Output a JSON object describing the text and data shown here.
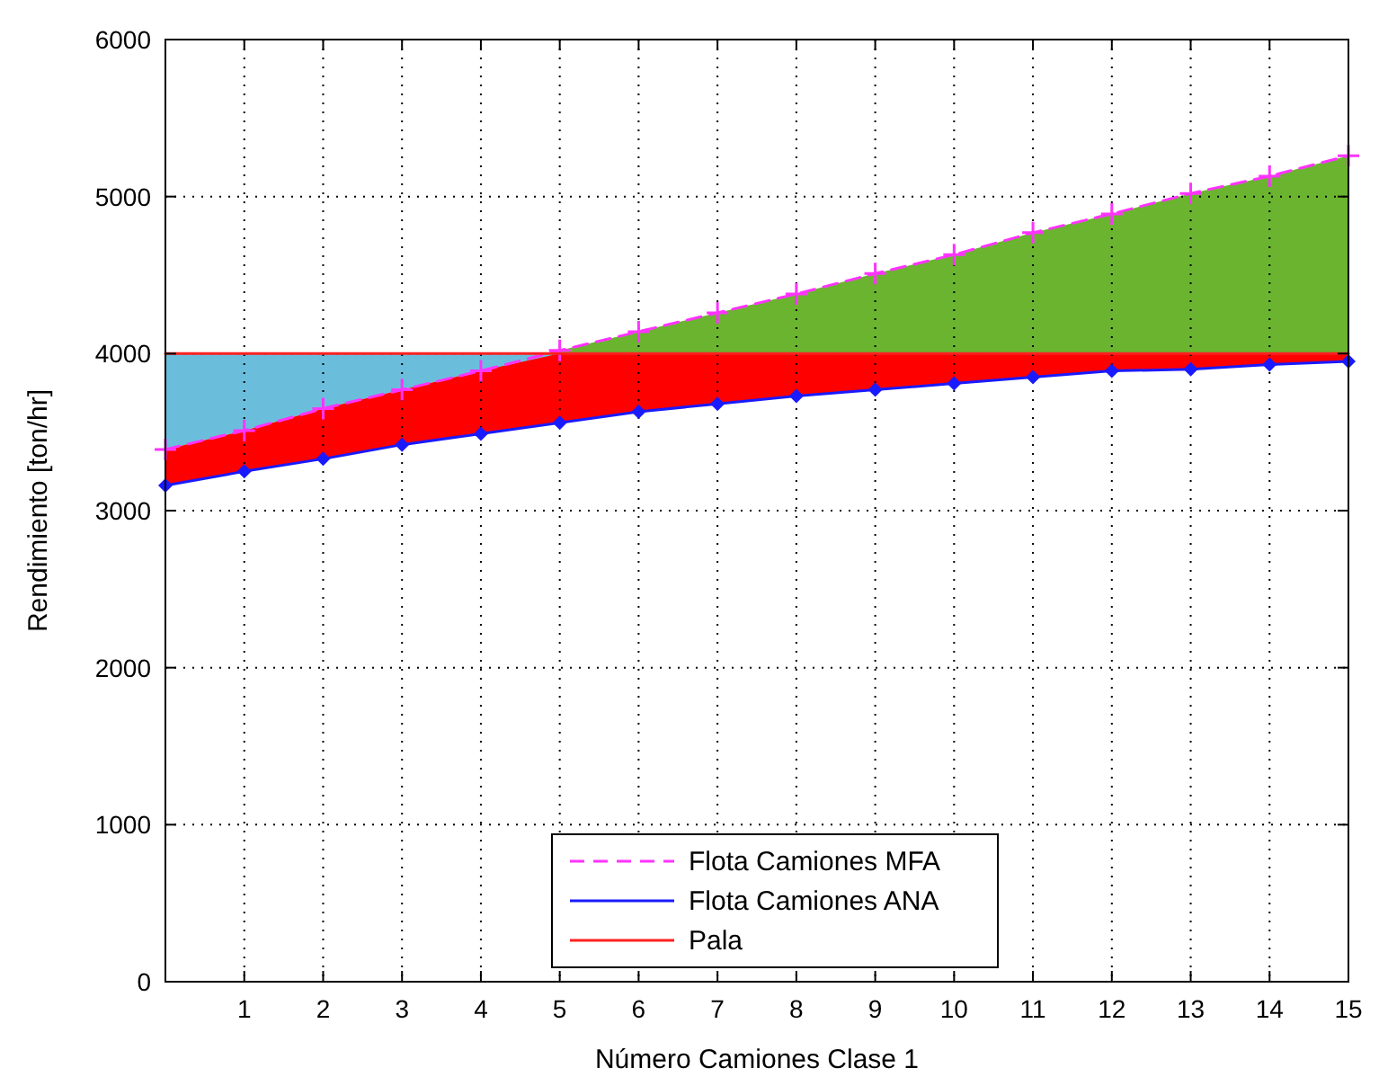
{
  "chart_data": {
    "type": "line",
    "xlabel": "Número Camiones Clase 1",
    "ylabel": "Rendimiento [ton/hr]",
    "x": [
      0,
      1,
      2,
      3,
      4,
      5,
      6,
      7,
      8,
      9,
      10,
      11,
      12,
      13,
      14,
      15
    ],
    "xlim": [
      0,
      15
    ],
    "xticks": [
      1,
      2,
      3,
      4,
      5,
      6,
      7,
      8,
      9,
      10,
      11,
      12,
      13,
      14,
      15
    ],
    "ylim": [
      0,
      6000
    ],
    "yticks": [
      0,
      1000,
      2000,
      3000,
      4000,
      5000,
      6000
    ],
    "grid": true,
    "legend": "bottom",
    "series": [
      {
        "type": "area",
        "color": "#6abedc",
        "x": [
          0,
          1,
          2,
          3,
          4,
          5
        ],
        "values": [
          4000,
          4000,
          4000,
          4000,
          4000,
          4000
        ]
      },
      {
        "type": "area",
        "color": "#6ab42f",
        "x": [
          5,
          6,
          7,
          8,
          9,
          10,
          11,
          12,
          13,
          14,
          15
        ],
        "values": [
          4020,
          4140,
          4260,
          4380,
          4510,
          4630,
          4770,
          4890,
          5020,
          5130,
          5260
        ]
      },
      {
        "type": "area",
        "color": "#ff0000",
        "values": [
          3390,
          3510,
          3650,
          3770,
          3890,
          4000,
          4000,
          4000,
          4000,
          4000,
          4000,
          4000,
          4000,
          4000,
          4000,
          4000
        ]
      },
      {
        "name": "Flota Camiones MFA",
        "color": "#ff33ff",
        "line_style": "dashed",
        "marker": "cross",
        "values": [
          3390,
          3510,
          3650,
          3770,
          3890,
          4020,
          4140,
          4260,
          4380,
          4510,
          4630,
          4770,
          4890,
          5020,
          5130,
          5260
        ]
      },
      {
        "name": "Flota Camiones ANA",
        "color": "#1a1aff",
        "line_style": "solid",
        "marker": "diamond",
        "values": [
          3160,
          3250,
          3330,
          3420,
          3490,
          3560,
          3630,
          3680,
          3730,
          3770,
          3810,
          3850,
          3890,
          3900,
          3930,
          3950
        ]
      },
      {
        "name": "Pala",
        "color": "#ff2020",
        "line_style": "solid",
        "marker": "none",
        "values": [
          4000,
          4000,
          4000,
          4000,
          4000,
          4000,
          4000,
          4000,
          4000,
          4000,
          4000,
          4000,
          4000,
          4000,
          4000,
          4000
        ]
      }
    ]
  }
}
